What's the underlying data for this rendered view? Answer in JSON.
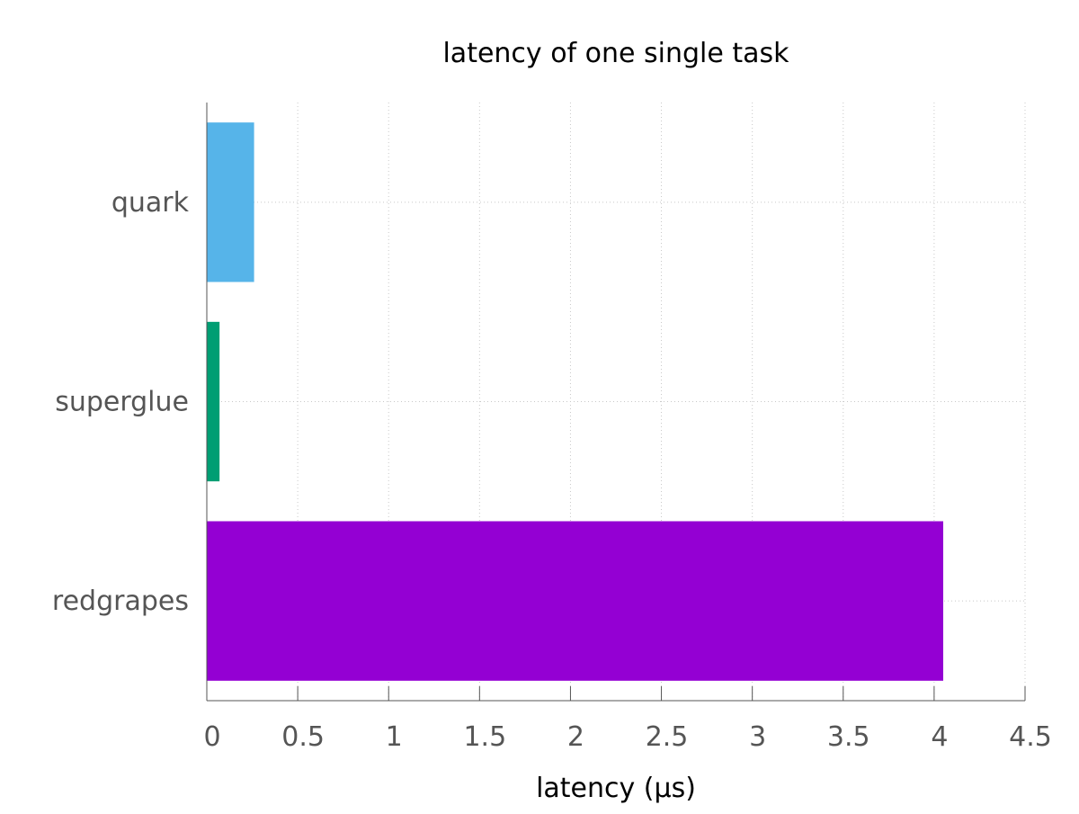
{
  "chart_data": {
    "type": "bar",
    "orientation": "horizontal",
    "title": "latency of one single task",
    "xlabel": "latency (µs)",
    "ylabel": "",
    "categories": [
      "quark",
      "superglue",
      "redgrapes"
    ],
    "values": [
      0.26,
      0.07,
      4.05
    ],
    "colors": [
      "#56b4e9",
      "#009e73",
      "#9400d3"
    ],
    "xlim": [
      0,
      4.5
    ],
    "xticks": [
      0,
      0.5,
      1,
      1.5,
      2,
      2.5,
      3,
      3.5,
      4,
      4.5
    ],
    "xtick_labels": [
      "0",
      "0.5",
      "1",
      "1.5",
      "2",
      "2.5",
      "3",
      "3.5",
      "4",
      "4.5"
    ],
    "grid": true,
    "legend": "none"
  }
}
